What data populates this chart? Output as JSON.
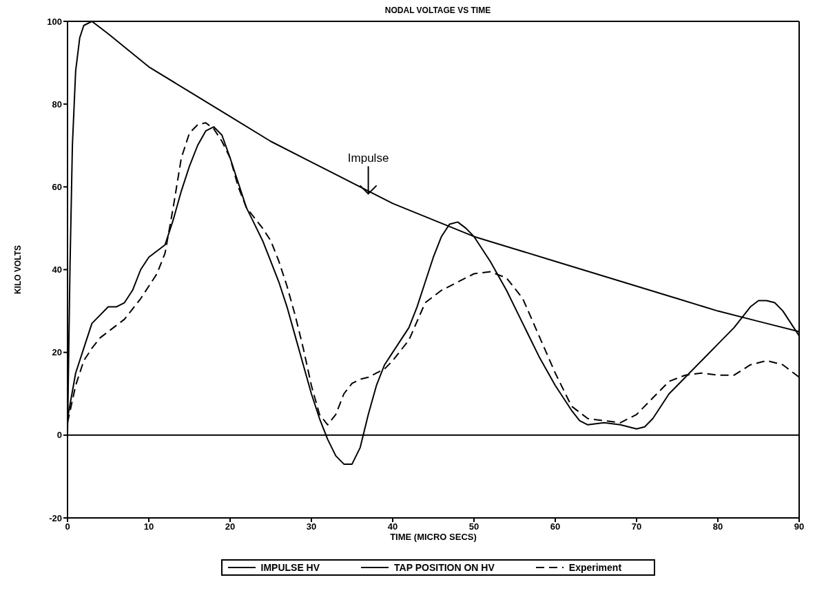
{
  "chart_data": {
    "type": "line",
    "title": "NODAL VOLTAGE VS TIME",
    "xlabel": "TIME (MICRO SECS)",
    "ylabel": "KILO VOLTS",
    "xlim": [
      0,
      90
    ],
    "xticks": [
      0,
      10,
      20,
      30,
      40,
      50,
      60,
      70,
      80,
      90
    ],
    "ylim": [
      -20,
      100
    ],
    "yticks": [
      -20,
      0,
      20,
      40,
      60,
      80,
      100
    ],
    "grid": false,
    "legend": "bottom",
    "ref_lines": [
      {
        "axis": "y",
        "value": 0,
        "color": "#000000"
      }
    ],
    "annotations": [
      {
        "text": "Impulse",
        "x": 37,
        "y": 58
      }
    ],
    "series": [
      {
        "name": "IMPULSE HV",
        "color": "#000000",
        "line_style": "solid",
        "x": [
          0,
          0.3,
          0.6,
          1,
          1.5,
          2,
          3,
          5,
          10,
          15,
          20,
          25,
          30,
          35,
          40,
          45,
          50,
          55,
          60,
          65,
          70,
          75,
          80,
          85,
          90
        ],
        "values": [
          0,
          40,
          70,
          88,
          96,
          99,
          100,
          97,
          89,
          83,
          77,
          71,
          66,
          61,
          56,
          52,
          48,
          45,
          42,
          39,
          36,
          33,
          30,
          27.5,
          25
        ]
      },
      {
        "name": "TAP POSITION ON HV",
        "color": "#000000",
        "line_style": "solid",
        "x": [
          0,
          1,
          2,
          3,
          4,
          5,
          6,
          7,
          8,
          9,
          10,
          11,
          12,
          13,
          14,
          15,
          16,
          17,
          18,
          19,
          20,
          21,
          22,
          23,
          24,
          25,
          26,
          27,
          28,
          29,
          30,
          31,
          32,
          33,
          34,
          35,
          36,
          37,
          38,
          39,
          40,
          41,
          42,
          43,
          44,
          45,
          46,
          47,
          48,
          49,
          50,
          52,
          54,
          56,
          58,
          60,
          62,
          63,
          64,
          66,
          68,
          70,
          71,
          72,
          74,
          76,
          78,
          80,
          82,
          84,
          85,
          86,
          87,
          88,
          89,
          90
        ],
        "values": [
          4,
          15,
          21,
          27,
          29,
          31,
          31,
          32,
          35,
          40,
          43,
          44.5,
          46,
          52,
          59,
          65,
          70,
          73.5,
          74.5,
          72.5,
          67,
          61,
          55,
          51,
          47,
          42,
          37,
          31,
          24,
          17,
          10,
          4,
          -1,
          -5,
          -7,
          -7,
          -3,
          5,
          12,
          17,
          20,
          23,
          26,
          31,
          37,
          43,
          48,
          51,
          51.5,
          50,
          48,
          42,
          35,
          27,
          19,
          12,
          6,
          3.5,
          2.5,
          3,
          2.5,
          1.5,
          2,
          4,
          10,
          14,
          18,
          22,
          26,
          31,
          32.5,
          32.5,
          32,
          30,
          27,
          24
        ]
      },
      {
        "name": "Experiment",
        "color": "#000000",
        "line_style": "dashed",
        "x": [
          0,
          1,
          2,
          3,
          4,
          5,
          7,
          9,
          11,
          12,
          13,
          14,
          15,
          16,
          17,
          18,
          19,
          20,
          21,
          22,
          23,
          24,
          25,
          26,
          27,
          28,
          29,
          30,
          31,
          32,
          33,
          34,
          35,
          36,
          37,
          38,
          39,
          40,
          42,
          44,
          46,
          48,
          50,
          52,
          54,
          56,
          58,
          60,
          62,
          64,
          66,
          68,
          70,
          72,
          74,
          76,
          78,
          80,
          82,
          84,
          86,
          88,
          90
        ],
        "values": [
          3,
          12,
          18,
          21,
          23.5,
          25,
          28,
          33,
          39,
          44,
          55,
          67,
          73,
          75,
          75.5,
          74,
          71,
          67,
          60,
          55,
          52.5,
          50,
          47,
          42,
          36,
          29,
          21,
          12,
          5,
          2.5,
          5,
          10,
          12.5,
          13.5,
          14,
          15,
          16,
          18,
          23,
          32,
          35,
          37,
          39,
          39.5,
          38,
          33,
          24,
          15,
          7,
          4,
          3.5,
          3,
          5,
          9,
          13,
          14.5,
          15,
          14.5,
          14.5,
          17,
          18,
          17,
          14
        ]
      }
    ]
  }
}
